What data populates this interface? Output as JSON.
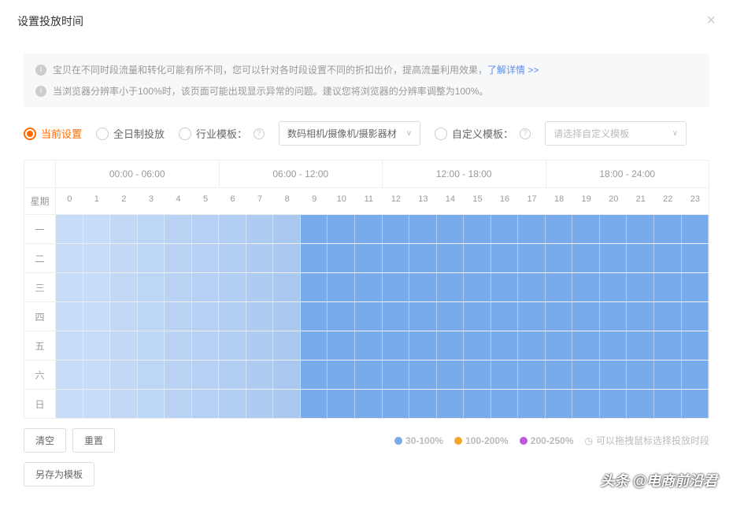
{
  "header": {
    "title": "设置投放时间",
    "close_glyph": "×"
  },
  "info": {
    "icon_glyph": "i",
    "line1_text": "宝贝在不同时段流量和转化可能有所不同，您可以针对各时段设置不同的折扣出价，提高流量利用效果，",
    "line1_link": "了解详情 >>",
    "line2_text": "当浏览器分辨率小于100%时，该页面可能出现显示异常的问题。建议您将浏览器的分辨率调整为100%。"
  },
  "controls": {
    "opt_current": "当前设置",
    "opt_allday": "全日制投放",
    "opt_industry_label": "行业模板：",
    "industry_selected": "数码相机/摄像机/摄影器材",
    "opt_custom_label": "自定义模板：",
    "custom_placeholder": "请选择自定义模板",
    "help_glyph": "?",
    "chevron_glyph": "∨",
    "selected": "current"
  },
  "schedule": {
    "corner_label": "星期",
    "time_groups": [
      "00:00 - 06:00",
      "06:00 - 12:00",
      "12:00 - 18:00",
      "18:00 - 24:00"
    ],
    "hours": [
      "0",
      "1",
      "2",
      "3",
      "4",
      "5",
      "6",
      "7",
      "8",
      "9",
      "10",
      "11",
      "12",
      "13",
      "14",
      "15",
      "16",
      "17",
      "18",
      "19",
      "20",
      "21",
      "22",
      "23"
    ],
    "days": [
      "一",
      "二",
      "三",
      "四",
      "五",
      "六",
      "日"
    ],
    "hour_colors": [
      "#c6dcf7",
      "#c6dcf7",
      "#c2d9f6",
      "#bed6f5",
      "#bad3f4",
      "#b6d0f3",
      "#b2cef2",
      "#aecbf1",
      "#aac8f0",
      "#77abe9",
      "#77abe9",
      "#77abe9",
      "#77abe9",
      "#77abe9",
      "#77abe9",
      "#77abe9",
      "#77abe9",
      "#77abe9",
      "#77abe9",
      "#77abe9",
      "#77abe9",
      "#77abe9",
      "#77abe9",
      "#77abe9"
    ]
  },
  "footer": {
    "btn_clear": "清空",
    "btn_reset": "重置",
    "btn_save_template": "另存为模板",
    "legend": [
      {
        "color": "#77abe9",
        "label": "30-100%"
      },
      {
        "color": "#f5a623",
        "label": "100-200%"
      },
      {
        "color": "#bd59e0",
        "label": "200-250%"
      }
    ],
    "tip_icon": "◷",
    "tip_text": "可以拖拽鼠标选择投放时段"
  },
  "watermark": "头条 @电商前沿君"
}
